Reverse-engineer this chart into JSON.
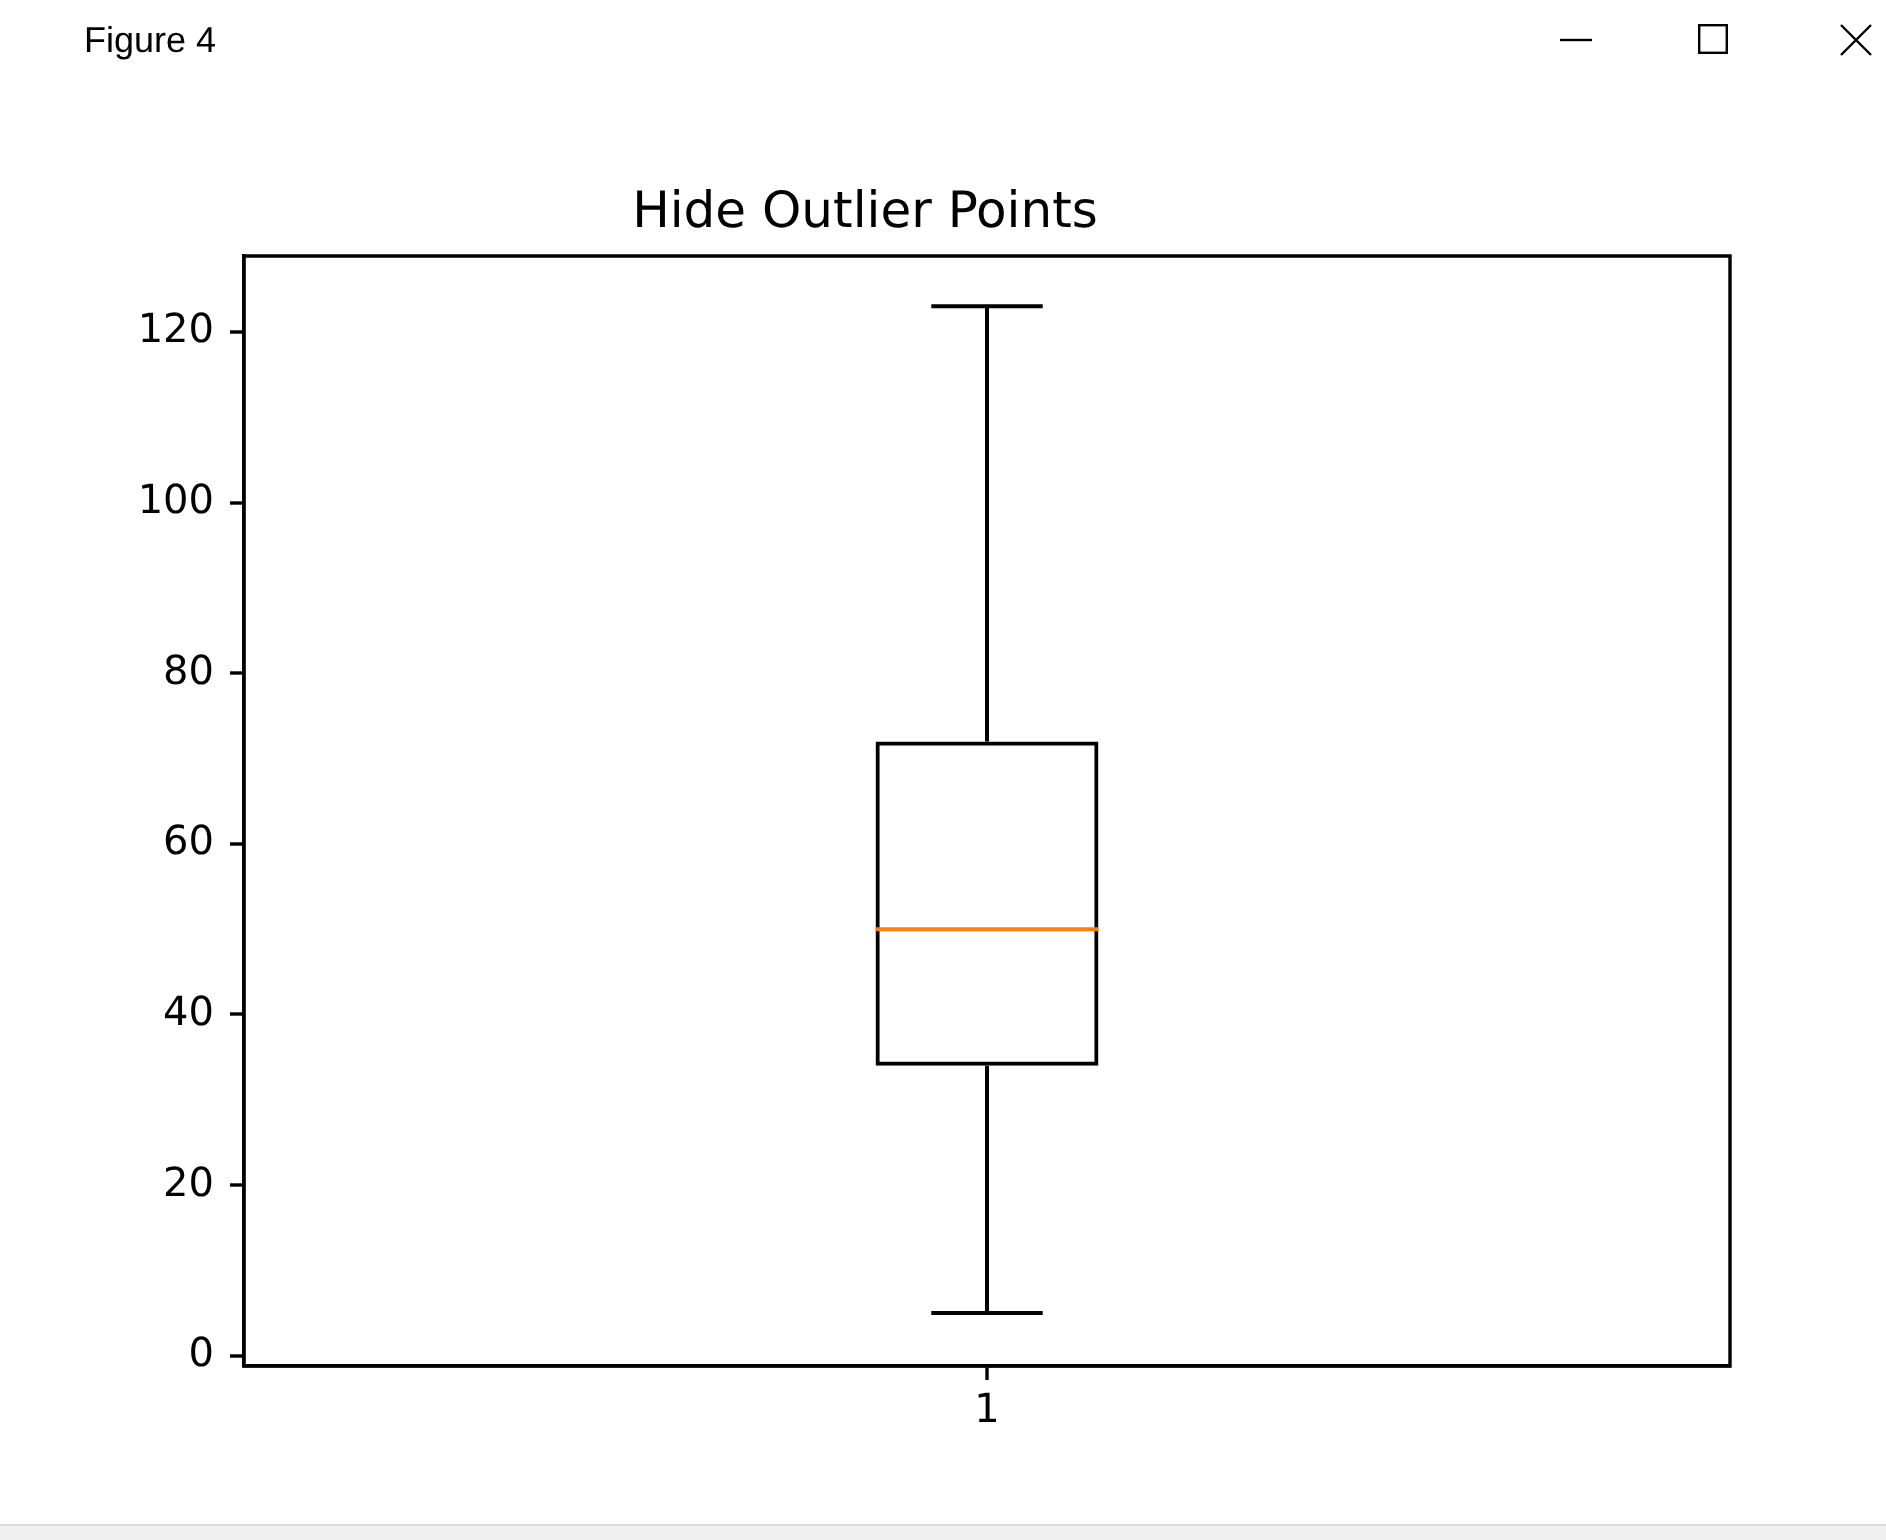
{
  "chart_data": {
    "type": "box",
    "title": "Hide Outlier Points",
    "annotations": [
      "Figure 4"
    ],
    "categories": [
      "1"
    ],
    "boxes": [
      {
        "low": 5,
        "q1": 34,
        "median": 50,
        "q3": 72,
        "high": 123
      }
    ],
    "color": "#000000",
    "ylim": [
      -1.2,
      128.9
    ],
    "yticks": [
      0,
      20,
      40,
      60,
      80,
      100,
      120
    ],
    "grid": false,
    "legend": false
  }
}
